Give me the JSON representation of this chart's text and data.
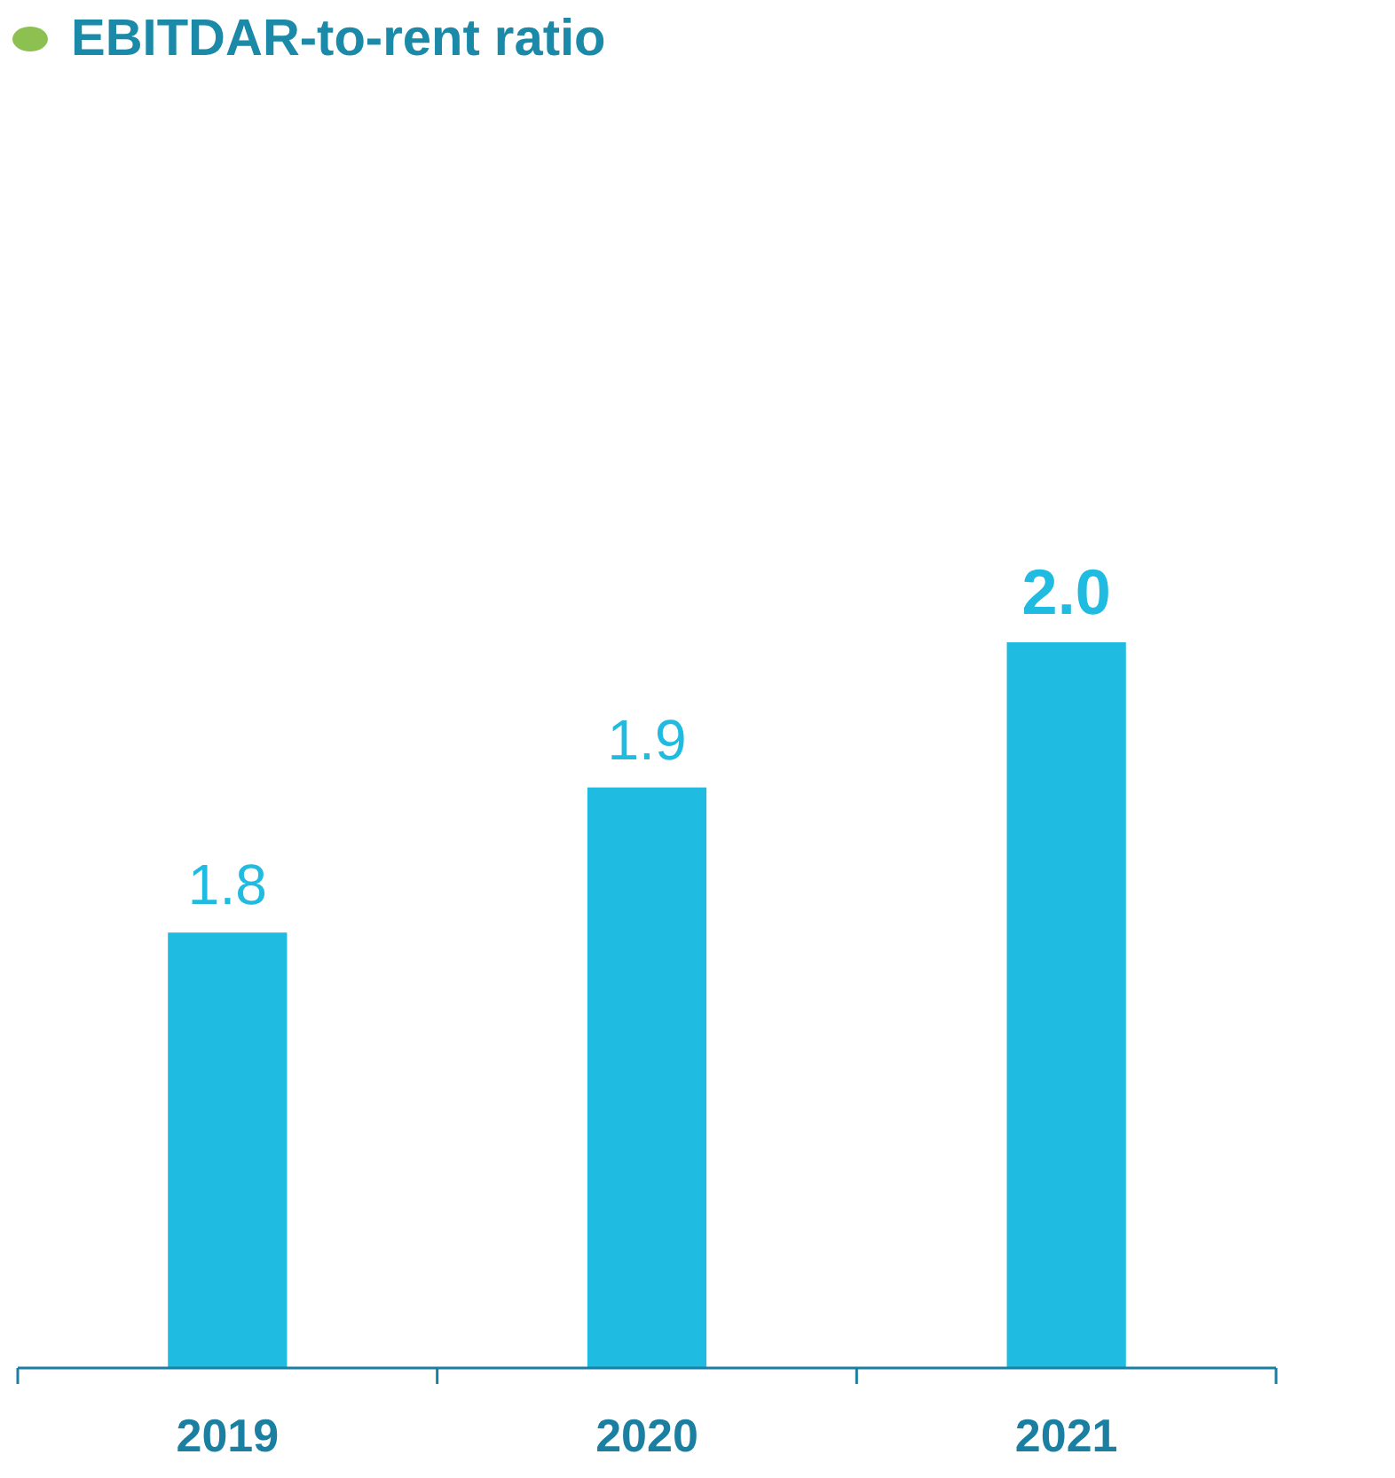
{
  "chart_data": {
    "type": "bar",
    "title": "EBITDAR-to-rent ratio",
    "categories": [
      "2019",
      "2020",
      "2021"
    ],
    "values": [
      1.8,
      1.9,
      2.0
    ],
    "value_labels": [
      "1.8",
      "1.9",
      "2.0"
    ],
    "color": "#1fbbe0",
    "ylim": [
      1.5,
      2.0
    ],
    "tick_labels": "x"
  }
}
